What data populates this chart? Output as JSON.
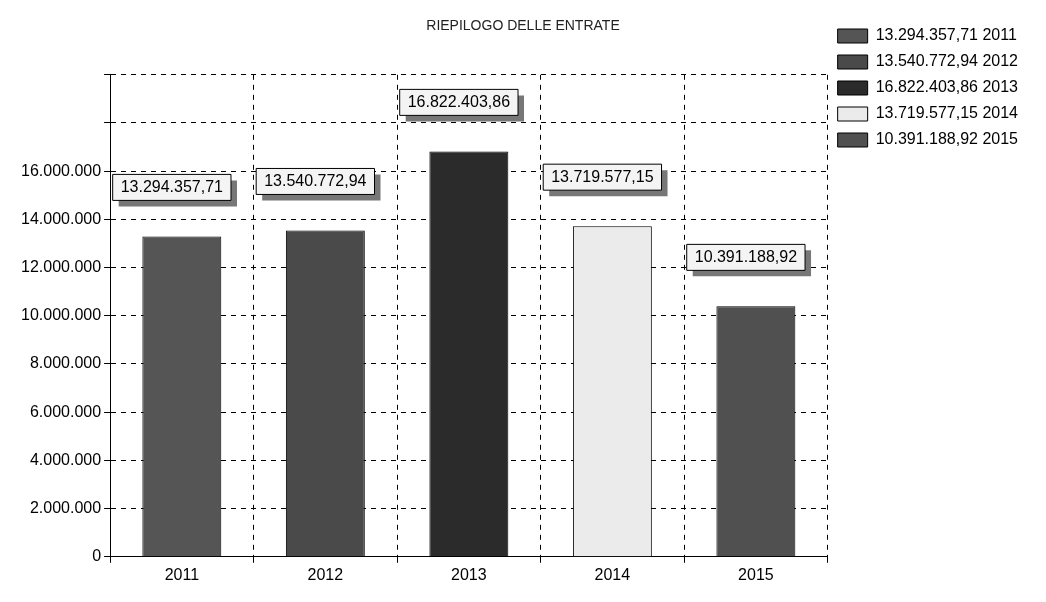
{
  "chart_data": {
    "type": "bar",
    "title": "RIEPILOGO DELLE ENTRATE",
    "categories": [
      "2011",
      "2012",
      "2013",
      "2014",
      "2015"
    ],
    "series": [
      {
        "name": "13.294.357,71 2011",
        "color": "#555555",
        "values": [
          13294357.71,
          null,
          null,
          null,
          null
        ],
        "value_labels": [
          "13.294.357,71",
          null,
          null,
          null,
          null
        ]
      },
      {
        "name": "13.540.772,94 2012",
        "color": "#4a4a4a",
        "values": [
          null,
          13540772.94,
          null,
          null,
          null
        ],
        "value_labels": [
          null,
          "13.540.772,94",
          null,
          null,
          null
        ]
      },
      {
        "name": "16.822.403,86 2013",
        "color": "#2b2b2b",
        "values": [
          null,
          null,
          16822403.86,
          null,
          null
        ],
        "value_labels": [
          null,
          null,
          "16.822.403,86",
          null,
          null
        ]
      },
      {
        "name": "13.719.577,15 2014",
        "color": "#ebebeb",
        "values": [
          null,
          null,
          null,
          13719577.15,
          null
        ],
        "value_labels": [
          null,
          null,
          null,
          "13.719.577,15",
          null
        ]
      },
      {
        "name": "10.391.188,92 2015",
        "color": "#505050",
        "values": [
          null,
          null,
          null,
          null,
          10391188.92
        ],
        "value_labels": [
          null,
          null,
          null,
          null,
          "10.391.188,92"
        ]
      }
    ],
    "ylim": [
      0,
      20000000
    ],
    "yticks": [
      0,
      {
        "value": 2000000,
        "label": "2.000.000"
      },
      {
        "value": 4000000,
        "label": "4.000.000"
      },
      {
        "value": 6000000,
        "label": "6.000.000"
      },
      {
        "value": 8000000,
        "label": "8.000.000"
      },
      {
        "value": 10000000,
        "label": "10.000.000"
      },
      {
        "value": 12000000,
        "label": "12.000.000"
      },
      {
        "value": 14000000,
        "label": "14.000.000"
      },
      {
        "value": 16000000,
        "label": "16.000.000"
      },
      {
        "value": 18000000,
        "label": null
      },
      {
        "value": 20000000,
        "label": null
      }
    ],
    "grid": true,
    "legend": "top right"
  }
}
